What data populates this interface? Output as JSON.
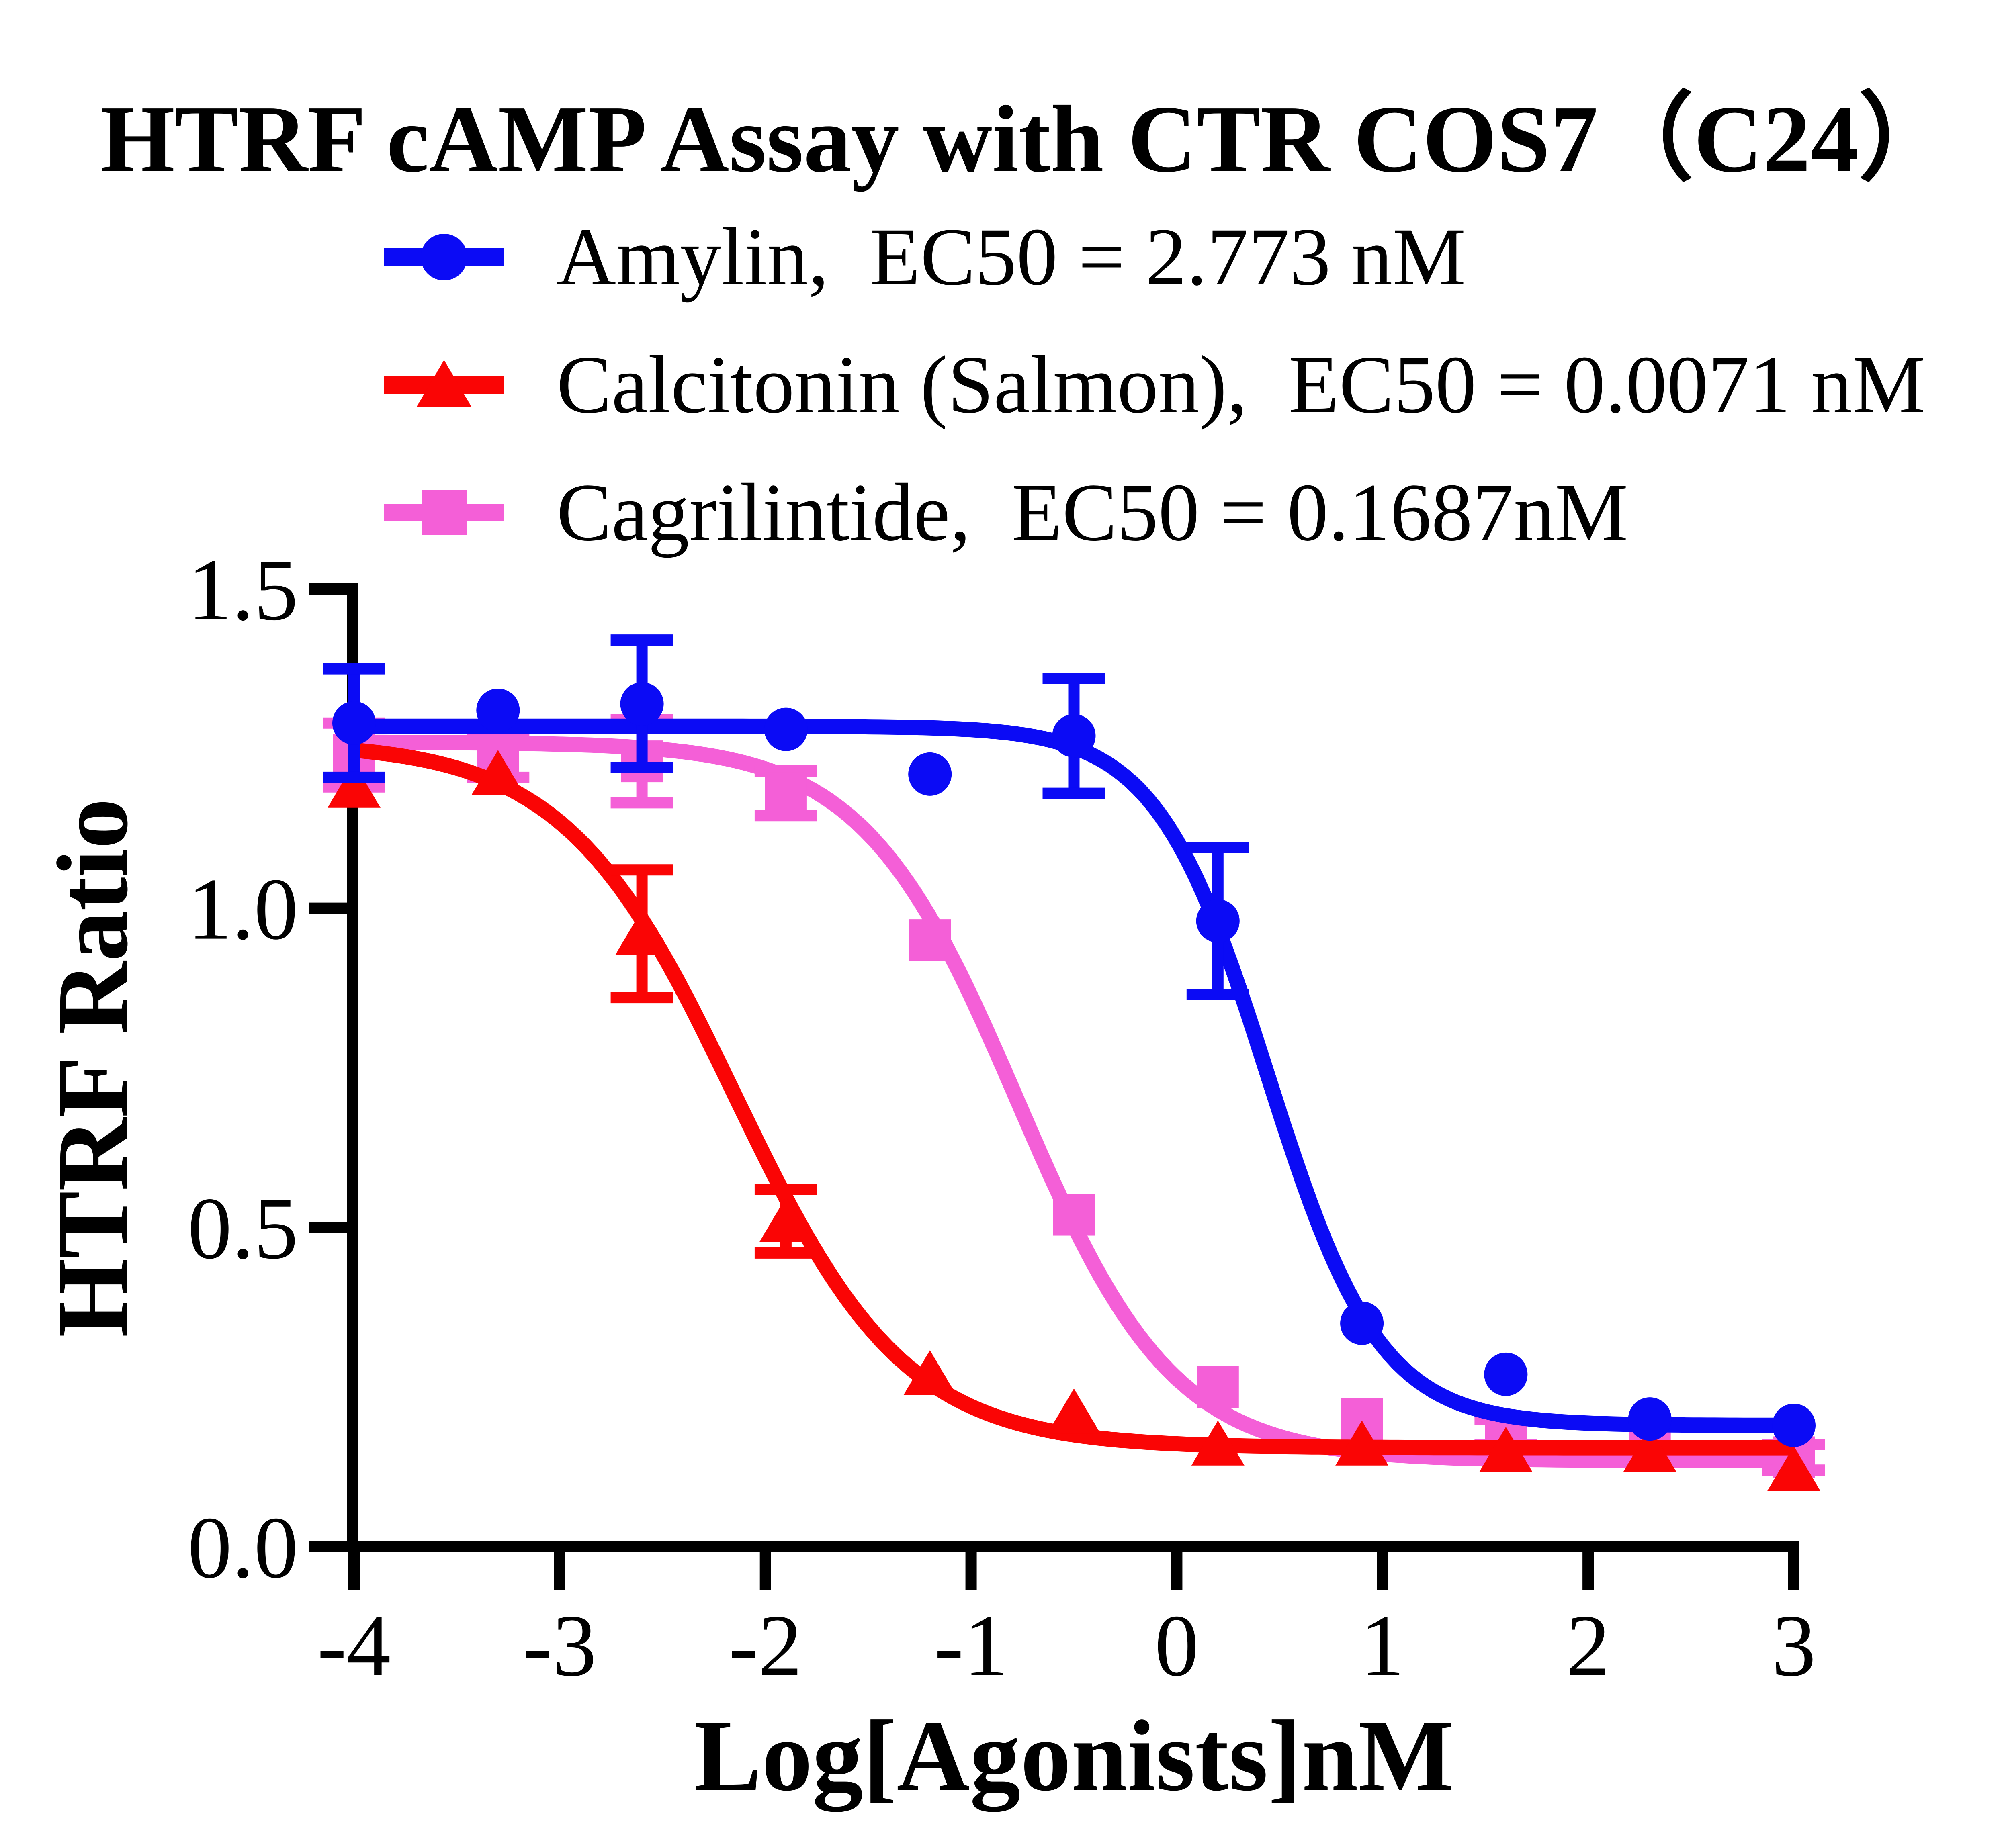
{
  "title": "HTRF cAMP Assay with CTR COS7（C24）",
  "legend": {
    "items": [
      {
        "label": "Amylin,  EC50 = 2.773 nM",
        "color": "#0b0bf5",
        "marker": "circle"
      },
      {
        "label": "Calcitonin (Salmon),  EC50 = 0.0071 nM",
        "color": "#fa0505",
        "marker": "triangle"
      },
      {
        "label": "Cagrilintide,  EC50 = 0.1687nM",
        "color": "#f45fd7",
        "marker": "square"
      }
    ]
  },
  "chart_data": {
    "type": "scatter",
    "title": "HTRF cAMP Assay with CTR COS7（C24）",
    "xlabel": "Log[Agonists]nM",
    "ylabel": "HTRF Ratio",
    "xlim": [
      -4,
      3
    ],
    "ylim": [
      0,
      1.5
    ],
    "grid": false,
    "legend_position": "top-left",
    "xticks": [
      -4,
      -3,
      -2,
      -1,
      0,
      1,
      2,
      3
    ],
    "xtick_labels": [
      "-4",
      "-3",
      "-2",
      "-1",
      "0",
      "1",
      "2",
      "3"
    ],
    "yticks": [
      0,
      0.5,
      1.0,
      1.5
    ],
    "ytick_labels": [
      "0.0",
      "0.5",
      "1.0",
      "1.5"
    ],
    "x": [
      -4,
      -3.3,
      -2.6,
      -1.9,
      -1.2,
      -0.5,
      0.2,
      0.9,
      1.6,
      2.3,
      3
    ],
    "series": [
      {
        "name": "Amylin",
        "ec50_nM": 2.773,
        "color": "#0b0bf5",
        "marker": "circle",
        "values": [
          1.29,
          1.31,
          1.32,
          1.28,
          1.21,
          1.27,
          0.98,
          0.35,
          0.27,
          0.2,
          0.19
        ],
        "errors": [
          0.085,
          0,
          0.1,
          0,
          0,
          0.09,
          0.115,
          0,
          0,
          0,
          0
        ],
        "fit": {
          "top": 1.285,
          "bottom": 0.19,
          "logEC50": 0.443,
          "hill": -1.6
        }
      },
      {
        "name": "Calcitonin (Salmon)",
        "ec50_nM": 0.0071,
        "color": "#fa0505",
        "marker": "triangle",
        "values": [
          1.19,
          1.21,
          0.96,
          0.51,
          0.27,
          0.21,
          0.16,
          0.16,
          0.15,
          0.15,
          0.12
        ],
        "errors": [
          0,
          0,
          0.1,
          0.05,
          0,
          0,
          0,
          0,
          0,
          0,
          0
        ],
        "fit": {
          "top": 1.26,
          "bottom": 0.155,
          "logEC50": -2.149,
          "hill": -1.05
        }
      },
      {
        "name": "Cagrilintide",
        "ec50_nM": 0.1687,
        "color": "#f45fd7",
        "marker": "square",
        "values": [
          1.24,
          1.24,
          1.23,
          1.18,
          0.95,
          0.52,
          0.25,
          0.2,
          0.18,
          0.16,
          0.14
        ],
        "errors": [
          0.05,
          0.035,
          0.065,
          0.035,
          0,
          0,
          0,
          0,
          0.02,
          0,
          0.02
        ],
        "fit": {
          "top": 1.26,
          "bottom": 0.135,
          "logEC50": -0.773,
          "hill": -1.15
        }
      }
    ]
  }
}
